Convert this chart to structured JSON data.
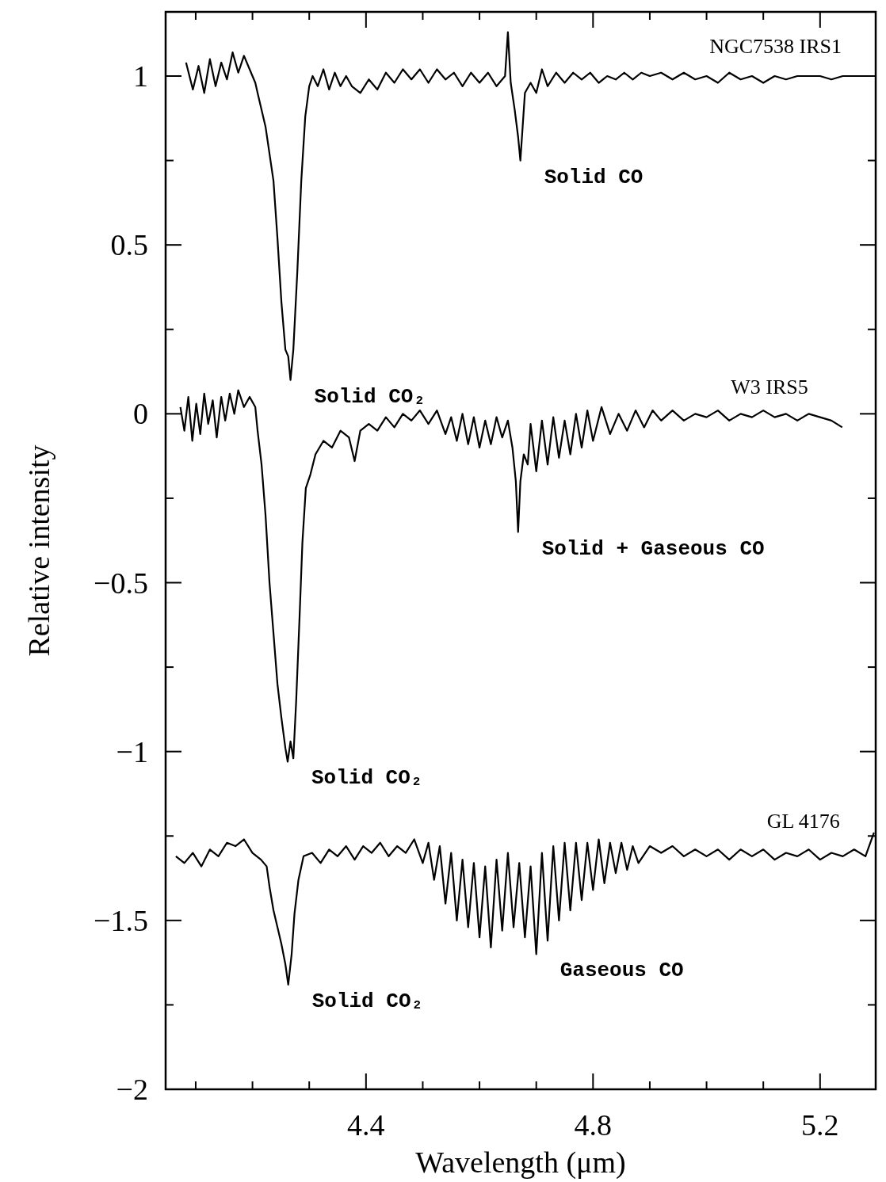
{
  "chart_data": {
    "type": "line",
    "xlabel": "Wavelength (μm)",
    "ylabel": "Relative intensity",
    "xlim": [
      4.047,
      5.298
    ],
    "ylim": [
      -2,
      1.19
    ],
    "xticks": [
      {
        "value": 4.1,
        "label": null
      },
      {
        "value": 4.2,
        "label": null
      },
      {
        "value": 4.3,
        "label": null
      },
      4.4,
      {
        "value": 4.5,
        "label": null
      },
      {
        "value": 4.6,
        "label": null
      },
      {
        "value": 4.7,
        "label": null
      },
      4.8,
      {
        "value": 4.9,
        "label": null
      },
      {
        "value": 5.0,
        "label": null
      },
      {
        "value": 5.1,
        "label": null
      },
      5.2
    ],
    "yticks": [
      {
        "value": -2,
        "label": "−2"
      },
      {
        "value": -1.75,
        "label": null
      },
      {
        "value": -1.5,
        "label": "−1.5"
      },
      {
        "value": -1.25,
        "label": null
      },
      {
        "value": -1,
        "label": "−1"
      },
      {
        "value": -0.75,
        "label": null
      },
      {
        "value": -0.5,
        "label": "−0.5"
      },
      {
        "value": -0.25,
        "label": null
      },
      0,
      {
        "value": 0.25,
        "label": null
      },
      0.5,
      {
        "value": 0.75,
        "label": null
      },
      1
    ],
    "grid": false,
    "legend": "top right",
    "marker": "none",
    "line_style": "solid",
    "series": [
      {
        "name": "NGC7538 IRS1",
        "color": "#000000",
        "x": [
          4.083,
          4.095,
          4.105,
          4.115,
          4.125,
          4.135,
          4.145,
          4.155,
          4.165,
          4.175,
          4.185,
          4.195,
          4.205,
          4.209,
          4.223,
          4.237,
          4.244,
          4.251,
          4.258,
          4.263,
          4.267,
          4.272,
          4.279,
          4.286,
          4.293,
          4.3,
          4.306,
          4.315,
          4.325,
          4.335,
          4.345,
          4.355,
          4.365,
          4.375,
          4.39,
          4.405,
          4.42,
          4.435,
          4.45,
          4.465,
          4.48,
          4.495,
          4.51,
          4.525,
          4.54,
          4.555,
          4.57,
          4.585,
          4.6,
          4.615,
          4.63,
          4.645,
          4.65,
          4.655,
          4.662,
          4.668,
          4.672,
          4.676,
          4.68,
          4.69,
          4.7,
          4.71,
          4.72,
          4.735,
          4.75,
          4.765,
          4.78,
          4.795,
          4.81,
          4.825,
          4.84,
          4.855,
          4.87,
          4.885,
          4.9,
          4.92,
          4.94,
          4.96,
          4.98,
          5.0,
          5.02,
          5.04,
          5.06,
          5.08,
          5.1,
          5.12,
          5.14,
          5.16,
          5.18,
          5.2,
          5.22,
          5.24,
          5.26,
          5.28,
          5.298
        ],
        "values": [
          1.04,
          0.96,
          1.03,
          0.95,
          1.05,
          0.97,
          1.04,
          0.99,
          1.07,
          1.01,
          1.06,
          1.02,
          0.98,
          0.95,
          0.85,
          0.69,
          0.52,
          0.33,
          0.19,
          0.17,
          0.1,
          0.19,
          0.42,
          0.69,
          0.88,
          0.97,
          1.0,
          0.97,
          1.02,
          0.96,
          1.01,
          0.97,
          1.0,
          0.97,
          0.95,
          0.99,
          0.96,
          1.01,
          0.98,
          1.02,
          0.99,
          1.02,
          0.98,
          1.02,
          0.99,
          1.01,
          0.97,
          1.01,
          0.98,
          1.01,
          0.97,
          1.0,
          1.13,
          0.98,
          0.9,
          0.82,
          0.75,
          0.85,
          0.95,
          0.98,
          0.95,
          1.02,
          0.97,
          1.01,
          0.98,
          1.01,
          0.99,
          1.01,
          0.98,
          1.0,
          0.99,
          1.01,
          0.99,
          1.01,
          1.0,
          1.01,
          0.99,
          1.01,
          0.99,
          1.0,
          0.98,
          1.01,
          0.99,
          1.0,
          0.98,
          1.0,
          0.99,
          1.0,
          1.0,
          1.0,
          0.99,
          1.0,
          1.0,
          1.0,
          1.0
        ]
      },
      {
        "name": "W3 IRS5",
        "color": "#000000",
        "x": [
          4.073,
          4.08,
          4.087,
          4.094,
          4.101,
          4.108,
          4.115,
          4.122,
          4.13,
          4.137,
          4.145,
          4.152,
          4.16,
          4.168,
          4.175,
          4.185,
          4.195,
          4.205,
          4.209,
          4.216,
          4.223,
          4.23,
          4.237,
          4.244,
          4.251,
          4.258,
          4.262,
          4.267,
          4.272,
          4.277,
          4.283,
          4.288,
          4.294,
          4.302,
          4.311,
          4.325,
          4.34,
          4.355,
          4.37,
          4.38,
          4.39,
          4.405,
          4.42,
          4.435,
          4.45,
          4.465,
          4.48,
          4.495,
          4.51,
          4.525,
          4.54,
          4.55,
          4.56,
          4.57,
          4.58,
          4.59,
          4.6,
          4.61,
          4.62,
          4.63,
          4.64,
          4.65,
          4.658,
          4.664,
          4.668,
          4.672,
          4.678,
          4.685,
          4.69,
          4.7,
          4.71,
          4.72,
          4.73,
          4.74,
          4.75,
          4.76,
          4.77,
          4.78,
          4.79,
          4.8,
          4.815,
          4.83,
          4.845,
          4.86,
          4.875,
          4.89,
          4.905,
          4.92,
          4.94,
          4.96,
          4.98,
          5.0,
          5.02,
          5.04,
          5.06,
          5.08,
          5.1,
          5.12,
          5.14,
          5.16,
          5.18,
          5.2,
          5.22,
          5.239
        ],
        "values": [
          0.02,
          -0.05,
          0.05,
          -0.08,
          0.03,
          -0.06,
          0.06,
          -0.03,
          0.04,
          -0.07,
          0.05,
          -0.02,
          0.06,
          0.0,
          0.07,
          0.02,
          0.05,
          0.02,
          -0.05,
          -0.15,
          -0.3,
          -0.5,
          -0.65,
          -0.8,
          -0.9,
          -0.99,
          -1.03,
          -0.97,
          -1.02,
          -0.85,
          -0.6,
          -0.38,
          -0.22,
          -0.18,
          -0.12,
          -0.08,
          -0.1,
          -0.05,
          -0.07,
          -0.14,
          -0.05,
          -0.03,
          -0.05,
          -0.01,
          -0.04,
          0.0,
          -0.02,
          0.01,
          -0.03,
          0.01,
          -0.06,
          -0.01,
          -0.08,
          0.0,
          -0.09,
          -0.01,
          -0.1,
          -0.02,
          -0.09,
          -0.01,
          -0.07,
          -0.02,
          -0.1,
          -0.2,
          -0.35,
          -0.2,
          -0.12,
          -0.15,
          -0.03,
          -0.17,
          -0.02,
          -0.15,
          -0.01,
          -0.13,
          -0.02,
          -0.12,
          0.0,
          -0.1,
          0.01,
          -0.08,
          0.02,
          -0.06,
          0.0,
          -0.05,
          0.01,
          -0.04,
          0.01,
          -0.02,
          0.01,
          -0.02,
          0.0,
          -0.01,
          0.01,
          -0.02,
          0.0,
          -0.01,
          0.01,
          -0.01,
          0.0,
          -0.02,
          0.0,
          -0.01,
          -0.02,
          -0.04
        ]
      },
      {
        "name": "GL 4176",
        "color": "#000000",
        "x": [
          4.065,
          4.08,
          4.095,
          4.11,
          4.125,
          4.14,
          4.155,
          4.17,
          4.185,
          4.2,
          4.215,
          4.225,
          4.23,
          4.237,
          4.244,
          4.251,
          4.258,
          4.263,
          4.269,
          4.274,
          4.281,
          4.29,
          4.305,
          4.32,
          4.335,
          4.35,
          4.365,
          4.38,
          4.395,
          4.41,
          4.425,
          4.44,
          4.455,
          4.47,
          4.485,
          4.5,
          4.51,
          4.52,
          4.53,
          4.54,
          4.55,
          4.56,
          4.57,
          4.58,
          4.59,
          4.6,
          4.61,
          4.62,
          4.63,
          4.64,
          4.65,
          4.66,
          4.67,
          4.68,
          4.69,
          4.7,
          4.71,
          4.72,
          4.73,
          4.74,
          4.75,
          4.76,
          4.77,
          4.78,
          4.79,
          4.8,
          4.81,
          4.82,
          4.83,
          4.84,
          4.85,
          4.86,
          4.87,
          4.88,
          4.9,
          4.92,
          4.94,
          4.96,
          4.98,
          5.0,
          5.02,
          5.04,
          5.06,
          5.08,
          5.1,
          5.12,
          5.14,
          5.16,
          5.18,
          5.2,
          5.22,
          5.24,
          5.26,
          5.28,
          5.295
        ],
        "values": [
          -1.31,
          -1.33,
          -1.3,
          -1.34,
          -1.29,
          -1.31,
          -1.27,
          -1.28,
          -1.26,
          -1.3,
          -1.32,
          -1.34,
          -1.4,
          -1.47,
          -1.52,
          -1.57,
          -1.63,
          -1.69,
          -1.6,
          -1.48,
          -1.38,
          -1.31,
          -1.3,
          -1.33,
          -1.29,
          -1.31,
          -1.28,
          -1.32,
          -1.28,
          -1.3,
          -1.27,
          -1.31,
          -1.28,
          -1.3,
          -1.26,
          -1.33,
          -1.27,
          -1.38,
          -1.28,
          -1.45,
          -1.3,
          -1.5,
          -1.32,
          -1.52,
          -1.33,
          -1.55,
          -1.34,
          -1.58,
          -1.32,
          -1.53,
          -1.3,
          -1.52,
          -1.33,
          -1.55,
          -1.34,
          -1.6,
          -1.3,
          -1.56,
          -1.28,
          -1.5,
          -1.27,
          -1.47,
          -1.27,
          -1.44,
          -1.27,
          -1.41,
          -1.26,
          -1.39,
          -1.27,
          -1.36,
          -1.27,
          -1.35,
          -1.28,
          -1.33,
          -1.28,
          -1.3,
          -1.28,
          -1.31,
          -1.29,
          -1.31,
          -1.29,
          -1.32,
          -1.29,
          -1.31,
          -1.29,
          -1.32,
          -1.3,
          -1.31,
          -1.29,
          -1.32,
          -1.3,
          -1.31,
          -1.29,
          -1.31,
          -1.24
        ]
      }
    ],
    "annotations": [
      {
        "text": "Solid CO",
        "x": 4.672,
        "y": 0.75
      },
      {
        "text": "Solid CO₂",
        "x": 4.267,
        "y": 0.1
      },
      {
        "text": "Solid + Gaseous CO",
        "x": 4.668,
        "y": -0.35
      },
      {
        "text": "Solid CO₂",
        "x": 4.262,
        "y": -1.03
      },
      {
        "text": "Gaseous CO",
        "x": 4.7,
        "y": -1.6
      },
      {
        "text": "Solid CO₂",
        "x": 4.263,
        "y": -1.69
      }
    ]
  }
}
